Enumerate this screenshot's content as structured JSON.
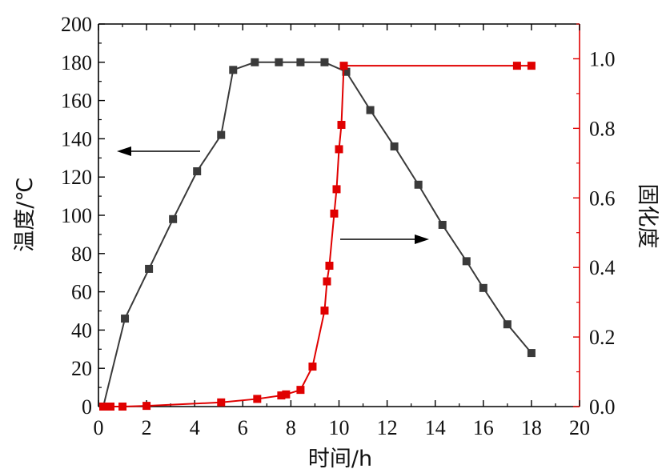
{
  "chart_data": {
    "type": "line",
    "xlabel": "时间/h",
    "ylabel_left": "温度/℃",
    "ylabel_right": "固化度",
    "xlim": [
      0,
      20
    ],
    "ylim_left": [
      0,
      200
    ],
    "ylim_right": [
      0,
      1.1
    ],
    "x_ticks": [
      "0",
      "2",
      "4",
      "6",
      "8",
      "10",
      "12",
      "14",
      "16",
      "18",
      "20"
    ],
    "y_left_ticks": [
      "0",
      "20",
      "40",
      "60",
      "80",
      "100",
      "120",
      "140",
      "160",
      "180",
      "200"
    ],
    "y_right_ticks": [
      "0.0",
      "0.2",
      "0.4",
      "0.6",
      "0.8",
      "1.0"
    ],
    "grid": false,
    "colors": {
      "temperature": "#3a3a3a",
      "cure": "#e00000",
      "left_axis": "#000000",
      "right_axis": "#e00000"
    },
    "series": [
      {
        "key": "temperature",
        "axis": "left",
        "marker": "square",
        "points": [
          [
            0.2,
            0
          ],
          [
            1.1,
            46
          ],
          [
            2.1,
            72
          ],
          [
            3.1,
            98
          ],
          [
            4.1,
            123
          ],
          [
            5.1,
            142
          ],
          [
            5.6,
            176
          ],
          [
            6.5,
            180
          ],
          [
            7.5,
            180
          ],
          [
            8.4,
            180
          ],
          [
            9.4,
            180
          ],
          [
            10.3,
            175
          ],
          [
            11.3,
            155
          ],
          [
            12.3,
            136
          ],
          [
            13.3,
            116
          ],
          [
            14.3,
            95
          ],
          [
            15.3,
            76
          ],
          [
            16.0,
            62
          ],
          [
            17.0,
            43
          ],
          [
            18.0,
            28
          ]
        ]
      },
      {
        "key": "cure",
        "axis": "right",
        "marker": "square",
        "points": [
          [
            0.2,
            0.0
          ],
          [
            0.5,
            0.0
          ],
          [
            1.0,
            0.0
          ],
          [
            2.0,
            0.002
          ],
          [
            5.1,
            0.012
          ],
          [
            6.6,
            0.022
          ],
          [
            7.6,
            0.032
          ],
          [
            7.8,
            0.035
          ],
          [
            8.4,
            0.048
          ],
          [
            8.9,
            0.115
          ],
          [
            9.4,
            0.276
          ],
          [
            9.5,
            0.36
          ],
          [
            9.6,
            0.405
          ],
          [
            9.8,
            0.555
          ],
          [
            9.9,
            0.625
          ],
          [
            10.0,
            0.74
          ],
          [
            10.1,
            0.81
          ],
          [
            10.2,
            0.98
          ],
          [
            17.4,
            0.98
          ],
          [
            18.0,
            0.98
          ]
        ]
      }
    ]
  }
}
